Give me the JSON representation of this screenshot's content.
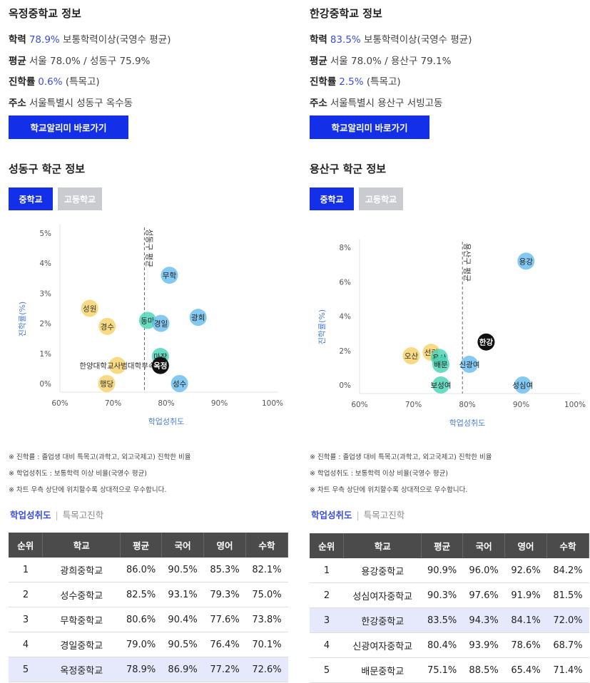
{
  "panels": [
    {
      "school_title": "옥정중학교 정보",
      "info": [
        {
          "label": "학력",
          "highlight": "78.9%",
          "text": "보통학력이상(국영수 평균)"
        },
        {
          "label": "평균",
          "highlight": "",
          "text": "서울 78.0% / 성동구 75.9%"
        },
        {
          "label": "진학률",
          "highlight": "0.6%",
          "text": "(특목고)"
        },
        {
          "label": "주소",
          "highlight": "",
          "text": "서울특별시 성동구 옥수동"
        }
      ],
      "link_button": "학교알리미 바로가기",
      "district_title": "성동구 학군 정보",
      "tabs": [
        "중학교",
        "고등학교"
      ],
      "subtabs": [
        "학업성취도",
        "특목고진학"
      ],
      "notes": [
        "※ 진학률 : 졸업생 대비 특목고(과학고, 외고국제고) 진학한 비율",
        "※ 학업성취도 : 보통학력 이상 비율(국영수 평균)",
        "※ 차트 우측 상단에 위치할수록 상대적으로 우수합니다."
      ],
      "table": {
        "headers": [
          "순위",
          "학교",
          "평균",
          "국어",
          "영어",
          "수학"
        ],
        "rows": [
          [
            "1",
            "광희중학교",
            "86.0%",
            "90.5%",
            "85.3%",
            "82.1%"
          ],
          [
            "2",
            "성수중학교",
            "82.5%",
            "93.1%",
            "79.3%",
            "75.0%"
          ],
          [
            "3",
            "무학중학교",
            "80.6%",
            "90.4%",
            "77.6%",
            "73.8%"
          ],
          [
            "4",
            "경일중학교",
            "79.0%",
            "90.5%",
            "76.4%",
            "70.1%"
          ],
          [
            "5",
            "옥정중학교",
            "78.9%",
            "86.9%",
            "77.2%",
            "72.6%"
          ]
        ],
        "highlight_row": 4
      }
    },
    {
      "school_title": "한강중학교 정보",
      "info": [
        {
          "label": "학력",
          "highlight": "83.5%",
          "text": "보통학력이상(국영수 평균)"
        },
        {
          "label": "평균",
          "highlight": "",
          "text": "서울 78.0% / 용산구 79.1%"
        },
        {
          "label": "진학률",
          "highlight": "2.5%",
          "text": "(특목고)"
        },
        {
          "label": "주소",
          "highlight": "",
          "text": "서울특별시 용산구 서빙고동"
        }
      ],
      "link_button": "학교알리미 바로가기",
      "district_title": "용산구 학군 정보",
      "tabs": [
        "중학교",
        "고등학교"
      ],
      "subtabs": [
        "학업성취도",
        "특목고진학"
      ],
      "notes": [
        "※ 진학률 : 졸업생 대비 특목고(과학고, 외고국제고) 진학한 비율",
        "※ 학업성취도 : 보통학력 이상 비율(국영수 평균)",
        "※ 차트 우측 상단에 위치할수록 상대적으로 우수합니다."
      ],
      "table": {
        "headers": [
          "순위",
          "학교",
          "평균",
          "국어",
          "영어",
          "수학"
        ],
        "rows": [
          [
            "1",
            "용강중학교",
            "90.9%",
            "96.0%",
            "92.6%",
            "84.2%"
          ],
          [
            "2",
            "성심여자중학교",
            "90.3%",
            "97.6%",
            "91.9%",
            "81.5%"
          ],
          [
            "3",
            "한강중학교",
            "83.5%",
            "94.3%",
            "84.1%",
            "72.0%"
          ],
          [
            "4",
            "신광여자중학교",
            "80.4%",
            "93.9%",
            "78.6%",
            "68.7%"
          ],
          [
            "5",
            "배문중학교",
            "75.1%",
            "88.5%",
            "65.4%",
            "71.4%"
          ]
        ],
        "highlight_row": 2
      }
    }
  ],
  "colors": {
    "accent": "#1330e8",
    "highlight_text": "#3a4ee0",
    "bubble_blue": "#6fc0ee",
    "bubble_yellow": "#f7d36e",
    "bubble_teal": "#4fd6b7",
    "bubble_current": "#111111",
    "axis_label": "#4a7fd6"
  },
  "chart_data": [
    {
      "type": "scatter",
      "xlabel": "학업성취도",
      "ylabel": "진학률(%)",
      "xlim": [
        60,
        100
      ],
      "ylim": [
        0,
        5
      ],
      "xticks": [
        "60%",
        "70%",
        "80%",
        "90%",
        "100%"
      ],
      "yticks": [
        "0%",
        "1%",
        "2%",
        "3%",
        "4%",
        "5%"
      ],
      "reference_line": {
        "x": 75.9,
        "label": "성동구 평균"
      },
      "points": [
        {
          "label": "무학",
          "x": 80.6,
          "y": 3.6,
          "color": "blue"
        },
        {
          "label": "광희",
          "x": 86.0,
          "y": 2.2,
          "color": "blue"
        },
        {
          "label": "성원",
          "x": 65.6,
          "y": 2.5,
          "color": "yellow"
        },
        {
          "label": "경수",
          "x": 68.9,
          "y": 1.9,
          "color": "yellow"
        },
        {
          "label": "동마",
          "x": 76.5,
          "y": 2.1,
          "color": "teal"
        },
        {
          "label": "경일",
          "x": 79.0,
          "y": 2.0,
          "color": "blue"
        },
        {
          "label": "마장",
          "x": 78.9,
          "y": 0.9,
          "color": "teal"
        },
        {
          "label": "한양대학교사범대학부속",
          "x": 70.8,
          "y": 0.6,
          "color": "yellow"
        },
        {
          "label": "옥정",
          "x": 78.9,
          "y": 0.6,
          "color": "current"
        },
        {
          "label": "행당",
          "x": 68.8,
          "y": 0.0,
          "color": "yellow"
        },
        {
          "label": "성수",
          "x": 82.5,
          "y": 0.0,
          "color": "blue"
        }
      ]
    },
    {
      "type": "scatter",
      "xlabel": "학업성취도",
      "ylabel": "진학률(%)",
      "xlim": [
        60,
        100
      ],
      "ylim": [
        0,
        8
      ],
      "xticks": [
        "60%",
        "70%",
        "80%",
        "90%",
        "100%"
      ],
      "yticks": [
        "0%",
        "2%",
        "4%",
        "6%",
        "8%"
      ],
      "reference_line": {
        "x": 79.1,
        "label": "용산구 평균"
      },
      "points": [
        {
          "label": "용강",
          "x": 90.9,
          "y": 7.2,
          "color": "blue"
        },
        {
          "label": "한강",
          "x": 83.5,
          "y": 2.5,
          "color": "current"
        },
        {
          "label": "오산",
          "x": 69.6,
          "y": 1.7,
          "color": "yellow"
        },
        {
          "label": "선린",
          "x": 73.3,
          "y": 1.9,
          "color": "yellow"
        },
        {
          "label": "용산",
          "x": 74.8,
          "y": 1.6,
          "color": "teal"
        },
        {
          "label": "배문",
          "x": 75.1,
          "y": 1.2,
          "color": "teal"
        },
        {
          "label": "신광여",
          "x": 80.4,
          "y": 1.2,
          "color": "blue"
        },
        {
          "label": "보성여",
          "x": 75.1,
          "y": 0.0,
          "color": "teal"
        },
        {
          "label": "성심여",
          "x": 90.3,
          "y": 0.0,
          "color": "blue"
        }
      ]
    }
  ]
}
